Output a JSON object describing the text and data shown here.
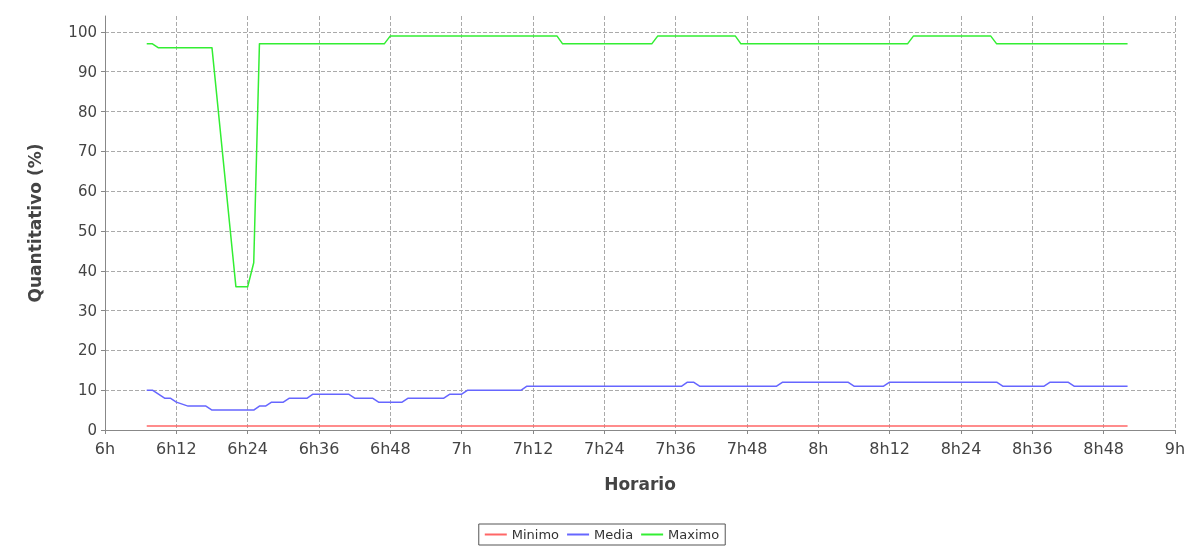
{
  "chart_data": {
    "type": "line",
    "xlabel": "Horario",
    "ylabel": "Quantitativo (%)",
    "xlim": [
      6,
      9
    ],
    "xticks": [
      {
        "value": 6,
        "label": "6h"
      },
      {
        "value": 6.2,
        "label": "6h12"
      },
      {
        "value": 6.4,
        "label": "6h24"
      },
      {
        "value": 6.6,
        "label": "6h36"
      },
      {
        "value": 6.8,
        "label": "6h48"
      },
      {
        "value": 7,
        "label": "7h"
      },
      {
        "value": 7.2,
        "label": "7h12"
      },
      {
        "value": 7.4,
        "label": "7h24"
      },
      {
        "value": 7.6,
        "label": "7h36"
      },
      {
        "value": 7.8,
        "label": "7h48"
      },
      {
        "value": 8,
        "label": "8h"
      },
      {
        "value": 8.2,
        "label": "8h12"
      },
      {
        "value": 8.4,
        "label": "8h24"
      },
      {
        "value": 8.6,
        "label": "8h36"
      },
      {
        "value": 8.8,
        "label": "8h48"
      },
      {
        "value": 9,
        "label": "9h"
      }
    ],
    "ylim": [
      0,
      104
    ],
    "yticks": [
      0,
      10,
      20,
      30,
      40,
      50,
      60,
      70,
      80,
      90,
      100
    ],
    "grid": true,
    "legend": "bottom",
    "marker": "none",
    "line_style": "solid",
    "series": [
      {
        "name": "Minimo",
        "color": "#ff6666",
        "x": [
          6.117,
          8.867
        ],
        "values": [
          1,
          1
        ]
      },
      {
        "name": "Media",
        "color": "#6666ff",
        "x": [
          6.117,
          6.133,
          6.167,
          6.183,
          6.2,
          6.233,
          6.283,
          6.3,
          6.417,
          6.433,
          6.45,
          6.467,
          6.5,
          6.517,
          6.567,
          6.583,
          6.683,
          6.7,
          6.75,
          6.767,
          6.833,
          6.85,
          6.95,
          6.967,
          7,
          7.017,
          7.167,
          7.183,
          7.617,
          7.633,
          7.65,
          7.667,
          7.883,
          7.9,
          8.083,
          8.1,
          8.183,
          8.2,
          8.5,
          8.517,
          8.633,
          8.65,
          8.7,
          8.717,
          8.867
        ],
        "values": [
          10,
          10,
          8,
          8,
          7,
          6,
          6,
          5,
          5,
          6,
          6,
          7,
          7,
          8,
          8,
          9,
          9,
          8,
          8,
          7,
          7,
          8,
          8,
          9,
          9,
          10,
          10,
          11,
          11,
          12,
          12,
          11,
          11,
          12,
          12,
          11,
          11,
          12,
          12,
          11,
          11,
          12,
          12,
          11,
          11
        ]
      },
      {
        "name": "Maximo",
        "color": "#33ee33",
        "x": [
          6.117,
          6.133,
          6.15,
          6.3,
          6.367,
          6.4,
          6.417,
          6.433,
          6.783,
          6.8,
          7.267,
          7.283,
          7.533,
          7.55,
          7.767,
          7.783,
          8.25,
          8.267,
          8.483,
          8.5,
          8.867
        ],
        "values": [
          97,
          97,
          96,
          96,
          36,
          36,
          42,
          97,
          97,
          99,
          99,
          97,
          97,
          99,
          99,
          97,
          97,
          99,
          99,
          97,
          97
        ]
      }
    ]
  }
}
